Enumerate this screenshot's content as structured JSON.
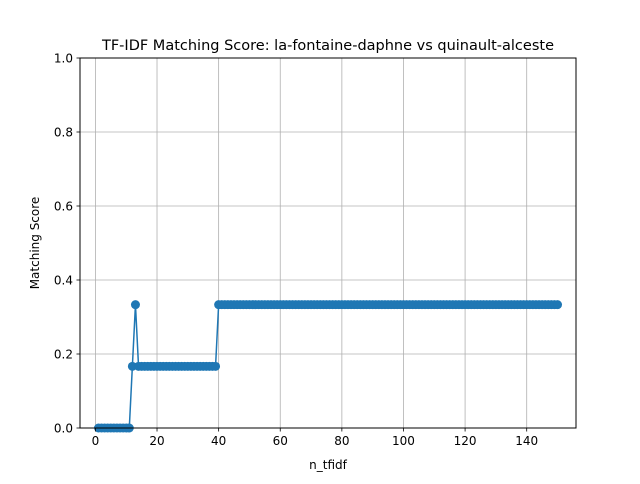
{
  "chart_data": {
    "type": "line",
    "title": "TF-IDF Matching Score: la-fontaine-daphne vs quinault-alceste",
    "xlabel": "n_tfidf",
    "ylabel": "Matching Score",
    "xlim": [
      -5,
      156
    ],
    "ylim": [
      0,
      1
    ],
    "xticks": [
      0,
      20,
      40,
      60,
      80,
      100,
      120,
      140
    ],
    "yticks": [
      0.0,
      0.2,
      0.4,
      0.6,
      0.8,
      1.0
    ],
    "xtick_labels": [
      "0",
      "20",
      "40",
      "60",
      "80",
      "100",
      "120",
      "140"
    ],
    "ytick_labels": [
      "0.0",
      "0.2",
      "0.4",
      "0.6",
      "0.8",
      "1.0"
    ],
    "grid": true,
    "marker": "circle",
    "line_color": "#1f77b4",
    "segments": [
      {
        "x_start": 1,
        "x_end": 11,
        "y": 0.0
      },
      {
        "x_start": 12,
        "x_end": 12,
        "y": 0.1667
      },
      {
        "x_start": 13,
        "x_end": 13,
        "y": 0.3333
      },
      {
        "x_start": 14,
        "x_end": 39,
        "y": 0.1667
      },
      {
        "x_start": 40,
        "x_end": 150,
        "y": 0.3333
      }
    ]
  }
}
